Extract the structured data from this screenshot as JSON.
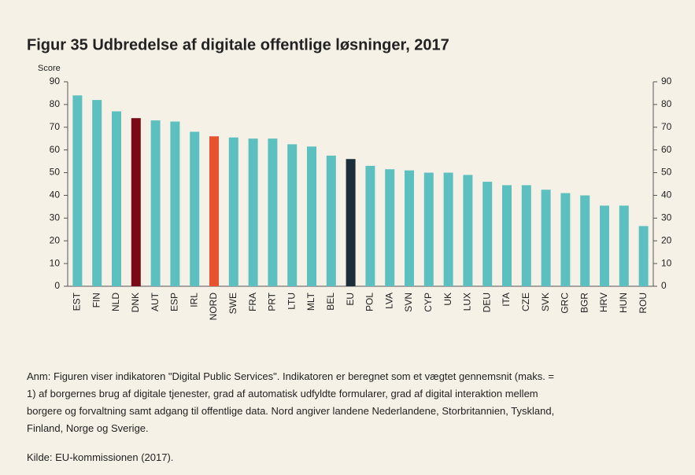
{
  "chart_data": {
    "type": "bar",
    "title": "Figur 35 Udbredelse af digitale offentlige løsninger, 2017",
    "y_label": "Score",
    "categories": [
      "EST",
      "FIN",
      "NLD",
      "DNK",
      "AUT",
      "ESP",
      "IRL",
      "NORD",
      "SWE",
      "FRA",
      "PRT",
      "LTU",
      "MLT",
      "BEL",
      "EU",
      "POL",
      "LVA",
      "SVN",
      "CYP",
      "UK",
      "LUX",
      "DEU",
      "ITA",
      "CZE",
      "SVK",
      "GRC",
      "BGR",
      "HRV",
      "HUN",
      "ROU"
    ],
    "values": [
      84,
      82,
      77,
      74,
      73,
      72.5,
      68,
      66,
      65.5,
      65,
      65,
      62.5,
      61.5,
      57.5,
      56,
      53,
      51.5,
      51,
      50,
      50,
      49,
      46,
      44.5,
      44.5,
      42.5,
      41,
      40,
      35.5,
      35.5,
      26.5
    ],
    "colors": [
      "#5cc0c0",
      "#5cc0c0",
      "#5cc0c0",
      "#7a0a16",
      "#5cc0c0",
      "#5cc0c0",
      "#5cc0c0",
      "#e8522f",
      "#5cc0c0",
      "#5cc0c0",
      "#5cc0c0",
      "#5cc0c0",
      "#5cc0c0",
      "#5cc0c0",
      "#1c2e3a",
      "#5cc0c0",
      "#5cc0c0",
      "#5cc0c0",
      "#5cc0c0",
      "#5cc0c0",
      "#5cc0c0",
      "#5cc0c0",
      "#5cc0c0",
      "#5cc0c0",
      "#5cc0c0",
      "#5cc0c0",
      "#5cc0c0",
      "#5cc0c0",
      "#5cc0c0",
      "#5cc0c0"
    ],
    "ylim": [
      0,
      90
    ],
    "yticks": [
      0,
      10,
      20,
      30,
      40,
      50,
      60,
      70,
      80,
      90
    ],
    "y2lim": [
      0,
      90
    ],
    "y2ticks": [
      0,
      10,
      20,
      30,
      40,
      50,
      60,
      70,
      80,
      90
    ]
  },
  "note": [
    "Anm: Figuren viser indikatoren \"Digital Public Services\". Indikatoren er beregnet som et vægtet gennemsnit (maks. =",
    "1) af borgernes brug af digitale tjenester, grad af automatisk udfyldte formularer, grad af digital interaktion mellem",
    "borgere og forvaltning samt adgang til offentlige data. Nord angiver landene Nederlandene, Storbritannien, Tyskland,",
    "Finland, Norge og Sverige."
  ],
  "source": "Kilde: EU-kommissionen (2017)."
}
